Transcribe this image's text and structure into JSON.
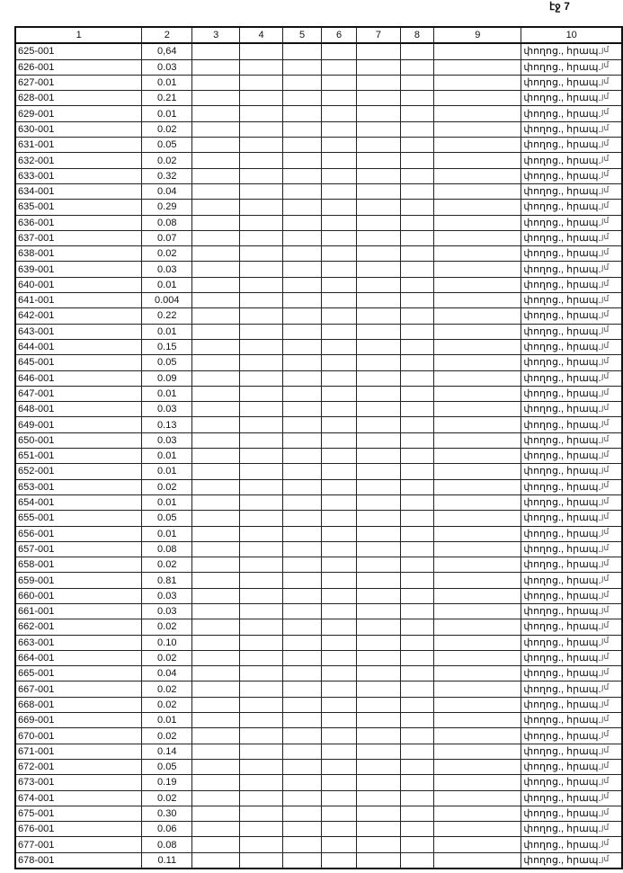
{
  "page_number": "էջ 7",
  "columns": [
    "1",
    "2",
    "3",
    "4",
    "5",
    "6",
    "7",
    "8",
    "9",
    "10"
  ],
  "margin_mark": "յմ",
  "rows": [
    [
      "625-001",
      "0,64",
      "փողոց., հրապ."
    ],
    [
      "626-001",
      "0.03",
      "փողոց., հրապ."
    ],
    [
      "627-001",
      "0.01",
      "փողոց., հրապ."
    ],
    [
      "628-001",
      "0.21",
      "փողոց., հրապ."
    ],
    [
      "629-001",
      "0.01",
      "փողոց., հրապ."
    ],
    [
      "630-001",
      "0.02",
      "փողոց., հրապ."
    ],
    [
      "631-001",
      "0.05",
      "փողոց., հրապ."
    ],
    [
      "632-001",
      "0.02",
      "փողոց., հրապ."
    ],
    [
      "633-001",
      "0.32",
      "փողոց., հրապ."
    ],
    [
      "634-001",
      "0.04",
      "փողոց., հրապ."
    ],
    [
      "635-001",
      "0.29",
      "փողոց., հրապ."
    ],
    [
      "636-001",
      "0.08",
      "փողոց., հրապ."
    ],
    [
      "637-001",
      "0.07",
      "փողոց., հրապ."
    ],
    [
      "638-001",
      "0.02",
      "փողոց., հրապ."
    ],
    [
      "639-001",
      "0.03",
      "փողոց., հրապ."
    ],
    [
      "640-001",
      "0.01",
      "փողոց., հրապ."
    ],
    [
      "641-001",
      "0.004",
      "փողոց., հրապ."
    ],
    [
      "642-001",
      "0.22",
      "փողոց., հրապ."
    ],
    [
      "643-001",
      "0.01",
      "փողոց., հրապ."
    ],
    [
      "644-001",
      "0.15",
      "փողոց., հրապ."
    ],
    [
      "645-001",
      "0.05",
      "փողոց., հրապ."
    ],
    [
      "646-001",
      "0.09",
      "փողոց., հրապ."
    ],
    [
      "647-001",
      "0.01",
      "փողոց., հրապ."
    ],
    [
      "648-001",
      "0.03",
      "փողոց., հրապ."
    ],
    [
      "649-001",
      "0.13",
      "փողոց., հրապ."
    ],
    [
      "650-001",
      "0.03",
      "փողոց., հրապ."
    ],
    [
      "651-001",
      "0.01",
      "փողոց., հրապ."
    ],
    [
      "652-001",
      "0.01",
      "փողոց., հրապ."
    ],
    [
      "653-001",
      "0.02",
      "փողոց., հրապ."
    ],
    [
      "654-001",
      "0.01",
      "փողոց., հրապ."
    ],
    [
      "655-001",
      "0.05",
      "փողոց., հրապ."
    ],
    [
      "656-001",
      "0.01",
      "փողոց., հրապ."
    ],
    [
      "657-001",
      "0.08",
      "փողոց., հրապ."
    ],
    [
      "658-001",
      "0.02",
      "փողոց., հրապ."
    ],
    [
      "659-001",
      "0.81",
      "փողոց., հրապ."
    ],
    [
      "660-001",
      "0.03",
      "փողոց., հրապ."
    ],
    [
      "661-001",
      "0.03",
      "փողոց., հրապ."
    ],
    [
      "662-001",
      "0.02",
      "փողոց., հրապ."
    ],
    [
      "663-001",
      "0.10",
      "փողոց., հրապ."
    ],
    [
      "664-001",
      "0.02",
      "փողոց., հրապ."
    ],
    [
      "665-001",
      "0.04",
      "փողոց., հրապ."
    ],
    [
      "667-001",
      "0.02",
      "փողոց., հրապ."
    ],
    [
      "668-001",
      "0.02",
      "փողոց., հրապ."
    ],
    [
      "669-001",
      "0.01",
      "փողոց., հրապ."
    ],
    [
      "670-001",
      "0.02",
      "փողոց., հրապ."
    ],
    [
      "671-001",
      "0.14",
      "փողոց., հրապ."
    ],
    [
      "672-001",
      "0.05",
      "փողոց., հրապ."
    ],
    [
      "673-001",
      "0.19",
      "փողոց., հրապ."
    ],
    [
      "674-001",
      "0.02",
      "փողոց., հրապ."
    ],
    [
      "675-001",
      "0.30",
      "փողոց., հրապ."
    ],
    [
      "676-001",
      "0.06",
      "փողոց., հրապ."
    ],
    [
      "677-001",
      "0.08",
      "փողոց., հրապ."
    ],
    [
      "678-001",
      "0.11",
      "փողոց., հրապ."
    ]
  ]
}
